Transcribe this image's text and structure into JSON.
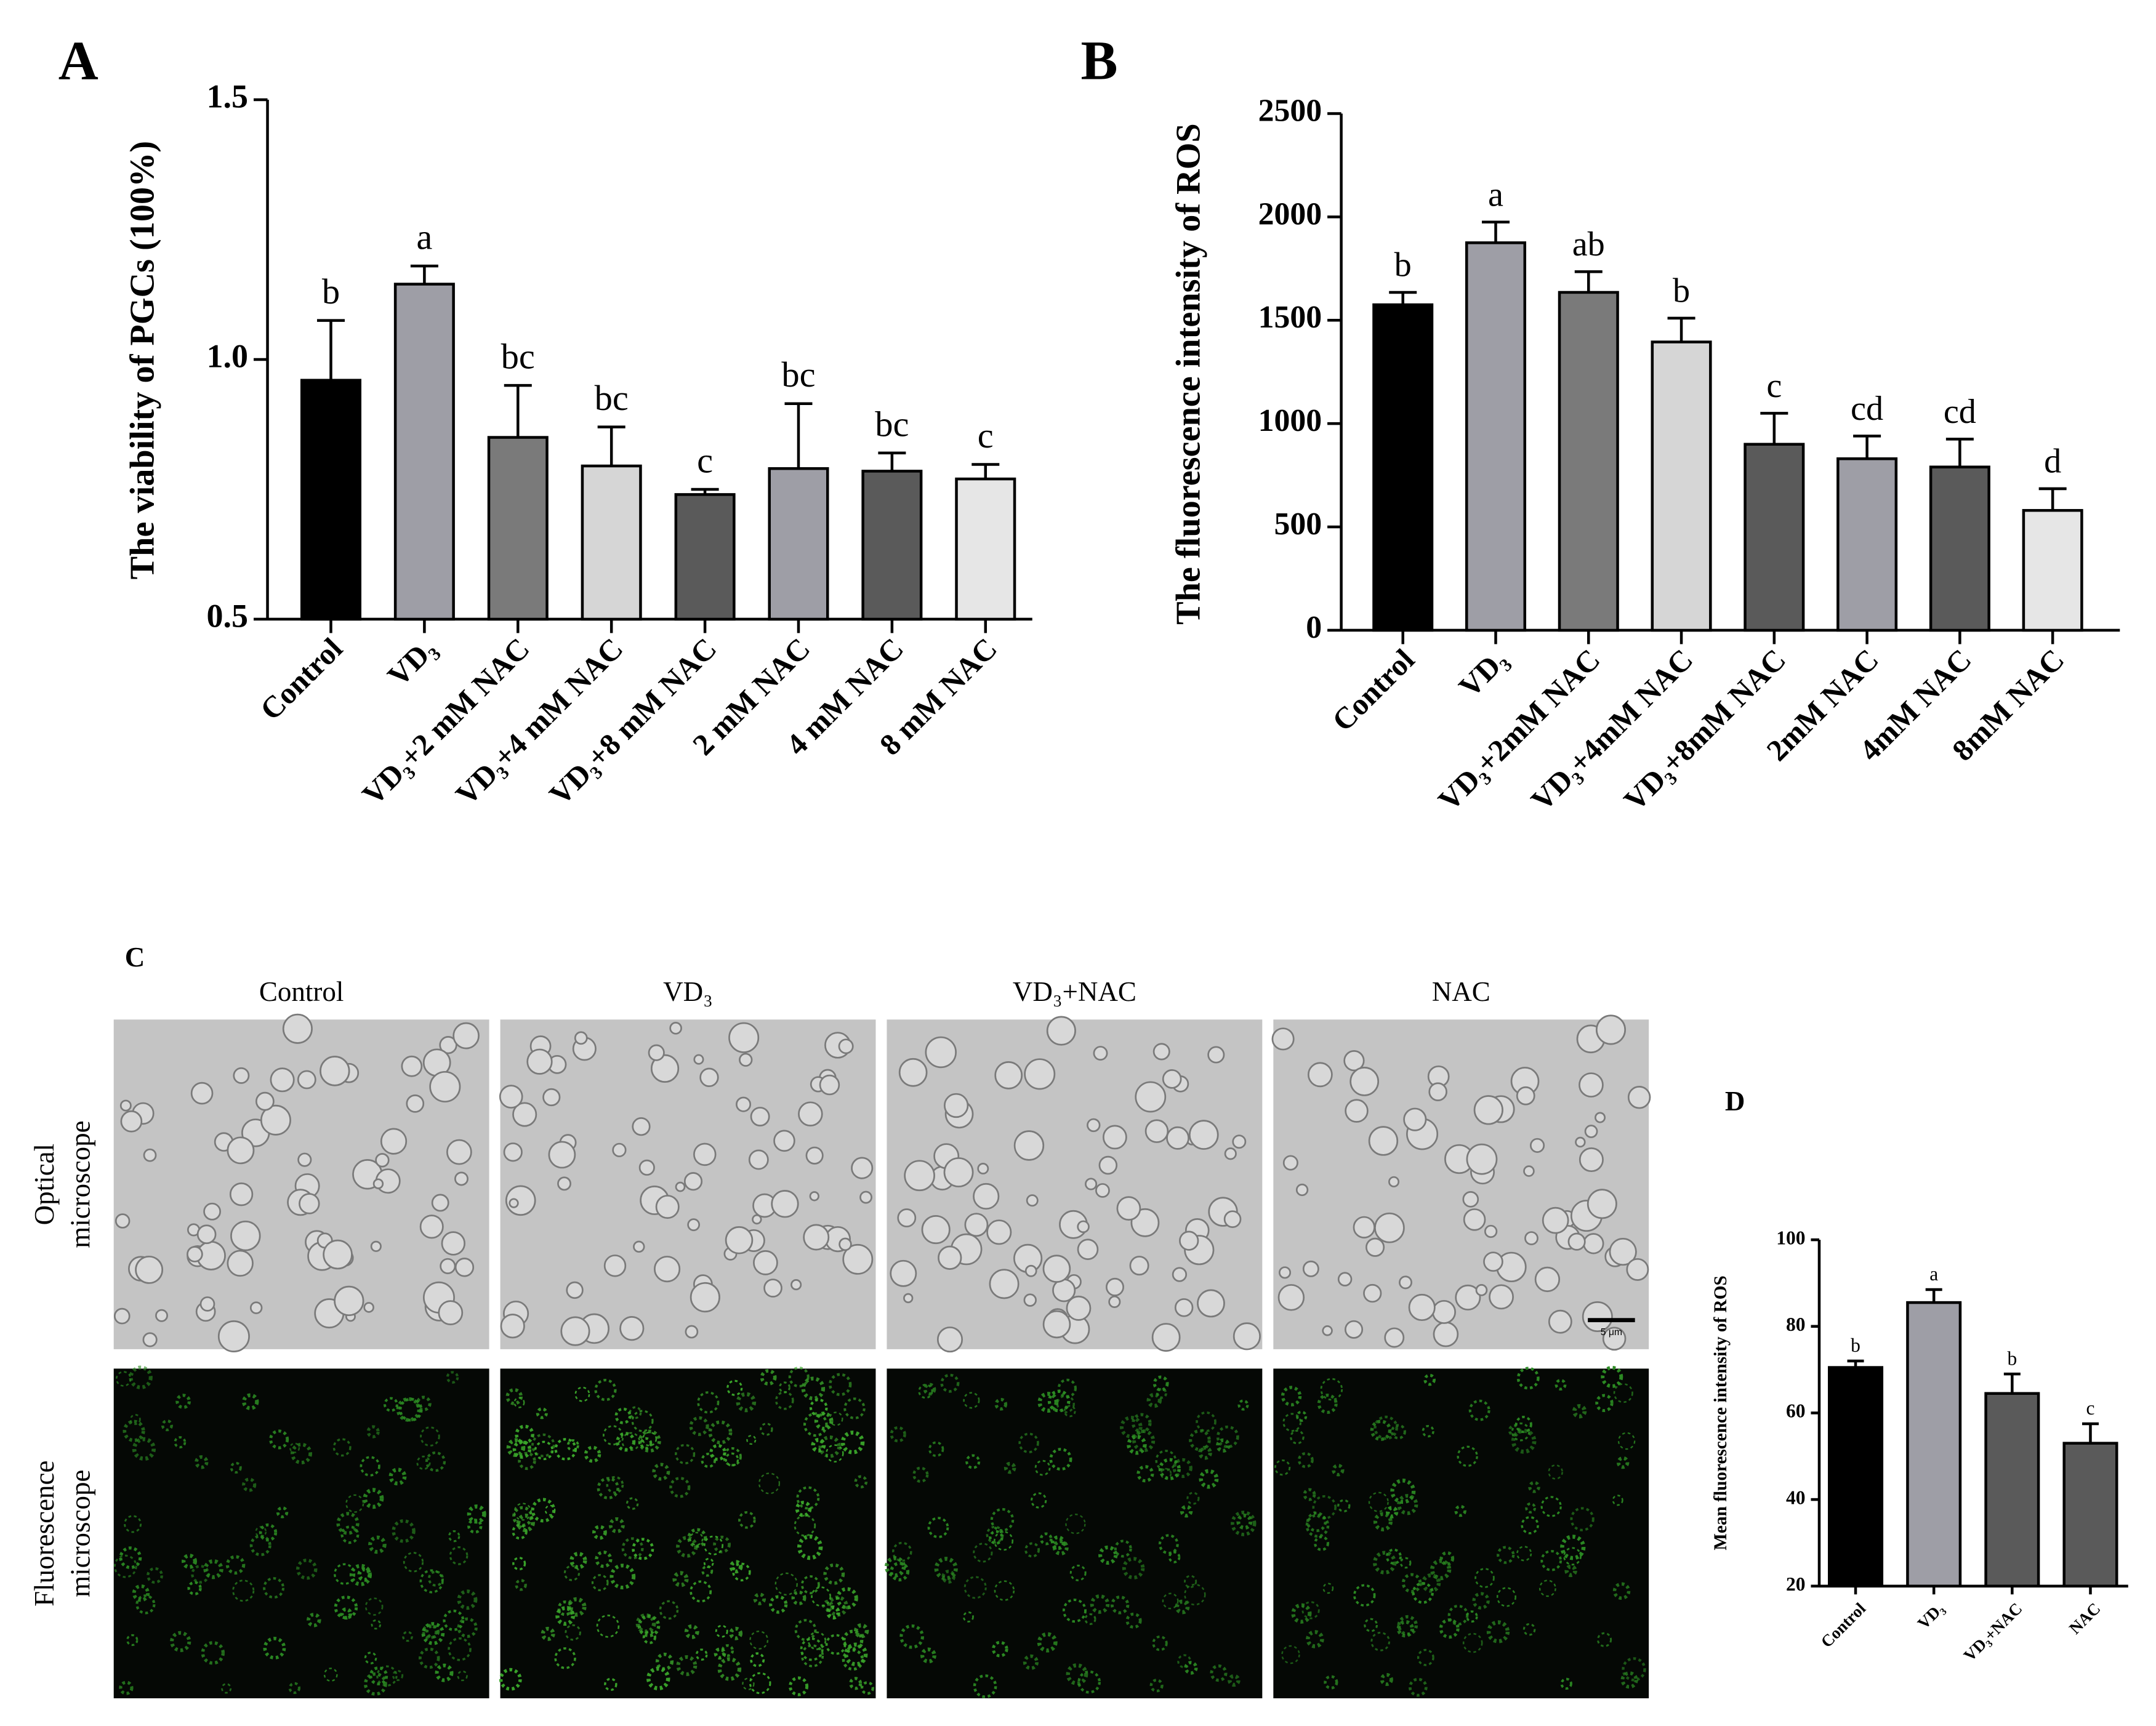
{
  "chart_data": [
    {
      "type": "bar",
      "panel_label": "A",
      "y_label": "The viability of PGCs (100%)",
      "categories": [
        "Control",
        "VD₃",
        "VD₃+2 mM NAC",
        "VD₃+4 mM NAC",
        "VD₃+8 mM NAC",
        "2 mM NAC",
        "4 mM NAC",
        "8 mM NAC"
      ],
      "values": [
        0.96,
        1.145,
        0.85,
        0.795,
        0.74,
        0.79,
        0.785,
        0.77
      ],
      "errors": [
        0.115,
        0.035,
        0.1,
        0.075,
        0.01,
        0.125,
        0.035,
        0.028
      ],
      "annotations": [
        "b",
        "a",
        "bc",
        "bc",
        "c",
        "bc",
        "bc",
        "c"
      ],
      "colors": [
        "#000000",
        "#9e9ea6",
        "#7a7a7a",
        "#d6d6d6",
        "#5a5a5a",
        "#9e9ea6",
        "#5a5a5a",
        "#e6e6e6"
      ],
      "ylim": [
        0.5,
        1.5
      ],
      "yticks": [
        0.5,
        {
          "value": 1.0,
          "label": "1.0"
        },
        1.5
      ]
    },
    {
      "type": "bar",
      "panel_label": "B",
      "y_label": "The fluorescence intensity of ROS",
      "categories": [
        "Control",
        "VD₃",
        "VD₃+2mM NAC",
        "VD₃+4mM NAC",
        "VD₃+8mM NAC",
        "2mM NAC",
        "4mM NAC",
        "8mM NAC"
      ],
      "values": [
        1575,
        1875,
        1635,
        1395,
        900,
        830,
        790,
        580
      ],
      "errors": [
        60,
        100,
        100,
        115,
        150,
        110,
        135,
        105
      ],
      "annotations": [
        "b",
        "a",
        "ab",
        "b",
        "c",
        "cd",
        "cd",
        "d"
      ],
      "colors": [
        "#000000",
        "#9e9ea6",
        "#7a7a7a",
        "#d6d6d6",
        "#5a5a5a",
        "#9e9ea6",
        "#5a5a5a",
        "#e6e6e6"
      ],
      "ylim": [
        0,
        2500
      ],
      "yticks": [
        0,
        500,
        1000,
        1500,
        2000,
        2500
      ]
    },
    {
      "type": "bar",
      "panel_label": "D",
      "y_label": "Mean fluorescence intensity of ROS",
      "categories": [
        "Control",
        "VD₃",
        "VD₃+NAC",
        "NAC"
      ],
      "values": [
        70.5,
        85.5,
        64.5,
        53
      ],
      "errors": [
        1.5,
        3,
        4.5,
        4.5
      ],
      "annotations": [
        "b",
        "a",
        "b",
        "c"
      ],
      "colors": [
        "#000000",
        "#9e9ea6",
        "#5a5a5a",
        "#5a5a5a"
      ],
      "ylim": [
        20,
        100
      ],
      "yticks": [
        20,
        40,
        60,
        80,
        100
      ]
    }
  ],
  "panel_c": {
    "panel_label": "C",
    "columns": [
      "Control",
      "VD₃",
      "VD₃+NAC",
      "NAC"
    ],
    "rows": [
      [
        "Optical",
        "microscope"
      ],
      [
        "Fluorescence",
        "microscope"
      ]
    ],
    "scale_bar": "5 μm"
  }
}
